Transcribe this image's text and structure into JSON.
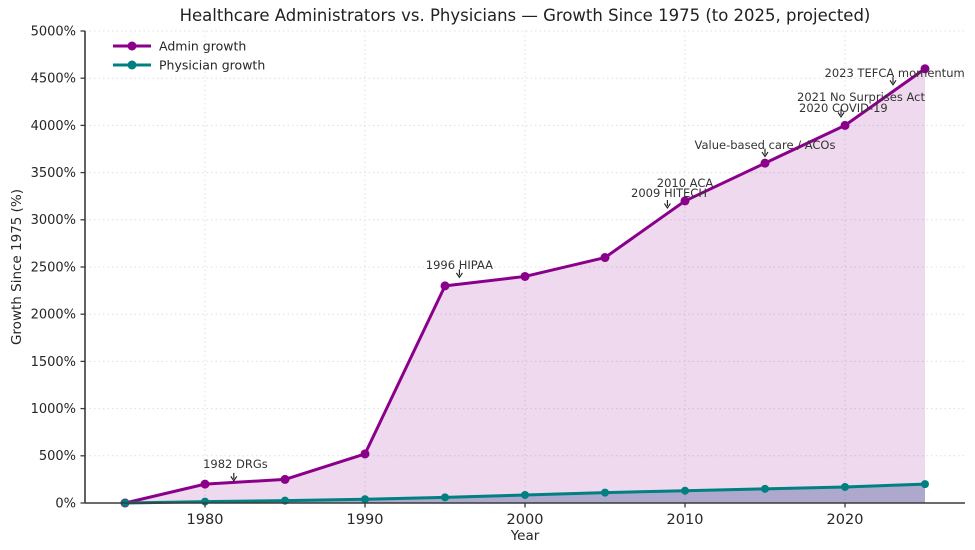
{
  "chart_data": {
    "type": "line",
    "title": "Healthcare Administrators vs. Physicians — Growth Since 1975 (to 2025, projected)",
    "xlabel": "Year",
    "ylabel": "Growth Since 1975 (%)",
    "xlim": [
      1972.5,
      2027.5
    ],
    "ylim": [
      0,
      5000
    ],
    "x_ticks": [
      1980,
      1990,
      2000,
      2010,
      2020
    ],
    "y_ticks": [
      0,
      500,
      1000,
      1500,
      2000,
      2500,
      3000,
      3500,
      4000,
      4500,
      5000
    ],
    "y_tick_suffix": "%",
    "grid": "dotted",
    "legend_position": "upper-left",
    "x": [
      1975,
      1980,
      1985,
      1990,
      1995,
      2000,
      2005,
      2010,
      2015,
      2020,
      2025
    ],
    "series": [
      {
        "name": "Admin growth",
        "color": "#8B008B",
        "fill": "rgba(139,0,139,0.15)",
        "marker_radius": 4.5,
        "values": [
          0,
          200,
          250,
          520,
          2300,
          2400,
          2600,
          3200,
          3600,
          4000,
          4600
        ]
      },
      {
        "name": "Physician growth",
        "color": "#008080",
        "fill": "rgba(70,90,150,0.38)",
        "marker_radius": 4,
        "values": [
          0,
          15,
          25,
          40,
          60,
          85,
          110,
          130,
          150,
          170,
          200
        ]
      }
    ],
    "annotations": [
      {
        "label": "1982 DRGs",
        "tx": 1981.9,
        "ty": 415,
        "ax": 1981.8,
        "ay": 235
      },
      {
        "label": "1996 HIPAA",
        "tx": 1995.9,
        "ty": 2520,
        "ax": 1995.9,
        "ay": 2390
      },
      {
        "label": "2009 HITECH",
        "tx": 2009.0,
        "ty": 3285,
        "ax": 2008.9,
        "ay": 3125
      },
      {
        "label": "2010 ACA",
        "tx": 2010.0,
        "ty": 3390,
        "ax": null,
        "ay": null
      },
      {
        "label": "Value-based care / ACOs",
        "tx": 2015.0,
        "ty": 3790,
        "ax": 2015.0,
        "ay": 3670
      },
      {
        "label": "2020 COVID-19",
        "tx": 2019.9,
        "ty": 4185,
        "ax": 2019.75,
        "ay": 4090
      },
      {
        "label": "2021 No Surprises Act",
        "tx": 2021.0,
        "ty": 4300,
        "ax": null,
        "ay": null
      },
      {
        "label": "2023 TEFCA momentum",
        "tx": 2023.1,
        "ty": 4555,
        "ax": 2023.0,
        "ay": 4430
      }
    ],
    "colors": {
      "spine": "#3a3a3a",
      "grid": "#e4dce4",
      "tick_label": "#262626",
      "annotation_text": "#333333",
      "arrow": "#1a1a1a"
    }
  }
}
